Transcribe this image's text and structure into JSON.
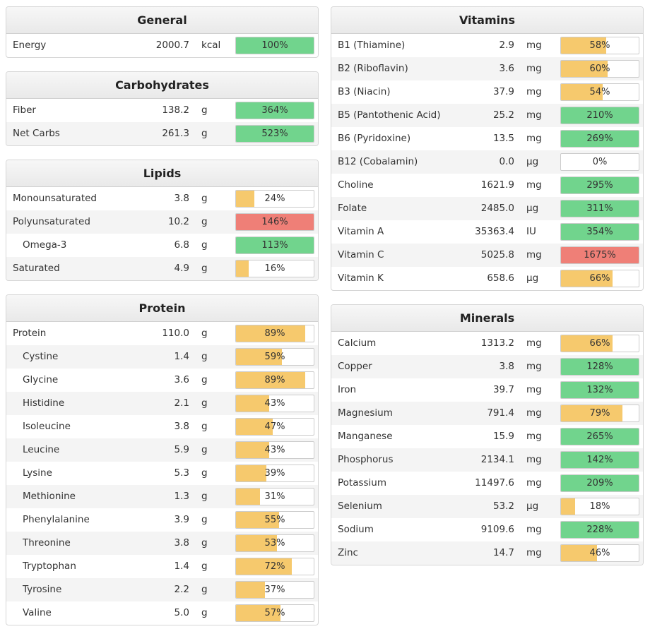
{
  "colors": {
    "low": "#f6c96d",
    "ok": "#71d48d",
    "high": "#ef7f77"
  },
  "left": [
    {
      "title": "General",
      "rows": [
        {
          "name": "Energy",
          "amount": "2000.7",
          "unit": "kcal",
          "pct_label": "100%",
          "percent": 100,
          "status": "green"
        }
      ]
    },
    {
      "title": "Carbohydrates",
      "rows": [
        {
          "name": "Fiber",
          "amount": "138.2",
          "unit": "g",
          "pct_label": "364%",
          "percent": 364,
          "status": "green"
        },
        {
          "name": "Net Carbs",
          "amount": "261.3",
          "unit": "g",
          "pct_label": "523%",
          "percent": 523,
          "status": "green"
        }
      ]
    },
    {
      "title": "Lipids",
      "rows": [
        {
          "name": "Monounsaturated",
          "amount": "3.8",
          "unit": "g",
          "pct_label": "24%",
          "percent": 24,
          "status": "yellow"
        },
        {
          "name": "Polyunsaturated",
          "amount": "10.2",
          "unit": "g",
          "pct_label": "146%",
          "percent": 146,
          "status": "red"
        },
        {
          "name": "Omega-3",
          "amount": "6.8",
          "unit": "g",
          "pct_label": "113%",
          "percent": 113,
          "status": "green",
          "indent": true
        },
        {
          "name": "Saturated",
          "amount": "4.9",
          "unit": "g",
          "pct_label": "16%",
          "percent": 16,
          "status": "yellow"
        }
      ]
    },
    {
      "title": "Protein",
      "rows": [
        {
          "name": "Protein",
          "amount": "110.0",
          "unit": "g",
          "pct_label": "89%",
          "percent": 89,
          "status": "yellow"
        },
        {
          "name": "Cystine",
          "amount": "1.4",
          "unit": "g",
          "pct_label": "59%",
          "percent": 59,
          "status": "yellow",
          "indent": true
        },
        {
          "name": "Glycine",
          "amount": "3.6",
          "unit": "g",
          "pct_label": "89%",
          "percent": 89,
          "status": "yellow",
          "indent": true
        },
        {
          "name": "Histidine",
          "amount": "2.1",
          "unit": "g",
          "pct_label": "43%",
          "percent": 43,
          "status": "yellow",
          "indent": true
        },
        {
          "name": "Isoleucine",
          "amount": "3.8",
          "unit": "g",
          "pct_label": "47%",
          "percent": 47,
          "status": "yellow",
          "indent": true
        },
        {
          "name": "Leucine",
          "amount": "5.9",
          "unit": "g",
          "pct_label": "43%",
          "percent": 43,
          "status": "yellow",
          "indent": true
        },
        {
          "name": "Lysine",
          "amount": "5.3",
          "unit": "g",
          "pct_label": "39%",
          "percent": 39,
          "status": "yellow",
          "indent": true
        },
        {
          "name": "Methionine",
          "amount": "1.3",
          "unit": "g",
          "pct_label": "31%",
          "percent": 31,
          "status": "yellow",
          "indent": true
        },
        {
          "name": "Phenylalanine",
          "amount": "3.9",
          "unit": "g",
          "pct_label": "55%",
          "percent": 55,
          "status": "yellow",
          "indent": true
        },
        {
          "name": "Threonine",
          "amount": "3.8",
          "unit": "g",
          "pct_label": "53%",
          "percent": 53,
          "status": "yellow",
          "indent": true
        },
        {
          "name": "Tryptophan",
          "amount": "1.4",
          "unit": "g",
          "pct_label": "72%",
          "percent": 72,
          "status": "yellow",
          "indent": true
        },
        {
          "name": "Tyrosine",
          "amount": "2.2",
          "unit": "g",
          "pct_label": "37%",
          "percent": 37,
          "status": "yellow",
          "indent": true
        },
        {
          "name": "Valine",
          "amount": "5.0",
          "unit": "g",
          "pct_label": "57%",
          "percent": 57,
          "status": "yellow",
          "indent": true
        }
      ]
    }
  ],
  "right": [
    {
      "title": "Vitamins",
      "rows": [
        {
          "name": "B1 (Thiamine)",
          "amount": "2.9",
          "unit": "mg",
          "pct_label": "58%",
          "percent": 58,
          "status": "yellow"
        },
        {
          "name": "B2 (Riboflavin)",
          "amount": "3.6",
          "unit": "mg",
          "pct_label": "60%",
          "percent": 60,
          "status": "yellow"
        },
        {
          "name": "B3 (Niacin)",
          "amount": "37.9",
          "unit": "mg",
          "pct_label": "54%",
          "percent": 54,
          "status": "yellow"
        },
        {
          "name": "B5 (Pantothenic Acid)",
          "amount": "25.2",
          "unit": "mg",
          "pct_label": "210%",
          "percent": 210,
          "status": "green"
        },
        {
          "name": "B6 (Pyridoxine)",
          "amount": "13.5",
          "unit": "mg",
          "pct_label": "269%",
          "percent": 269,
          "status": "green"
        },
        {
          "name": "B12 (Cobalamin)",
          "amount": "0.0",
          "unit": "µg",
          "pct_label": "0%",
          "percent": 0,
          "status": "yellow"
        },
        {
          "name": "Choline",
          "amount": "1621.9",
          "unit": "mg",
          "pct_label": "295%",
          "percent": 295,
          "status": "green"
        },
        {
          "name": "Folate",
          "amount": "2485.0",
          "unit": "µg",
          "pct_label": "311%",
          "percent": 311,
          "status": "green"
        },
        {
          "name": "Vitamin A",
          "amount": "35363.4",
          "unit": "IU",
          "pct_label": "354%",
          "percent": 354,
          "status": "green"
        },
        {
          "name": "Vitamin C",
          "amount": "5025.8",
          "unit": "mg",
          "pct_label": "1675%",
          "percent": 1675,
          "status": "red"
        },
        {
          "name": "Vitamin K",
          "amount": "658.6",
          "unit": "µg",
          "pct_label": "66%",
          "percent": 66,
          "status": "yellow"
        }
      ]
    },
    {
      "title": "Minerals",
      "rows": [
        {
          "name": "Calcium",
          "amount": "1313.2",
          "unit": "mg",
          "pct_label": "66%",
          "percent": 66,
          "status": "yellow"
        },
        {
          "name": "Copper",
          "amount": "3.8",
          "unit": "mg",
          "pct_label": "128%",
          "percent": 128,
          "status": "green"
        },
        {
          "name": "Iron",
          "amount": "39.7",
          "unit": "mg",
          "pct_label": "132%",
          "percent": 132,
          "status": "green"
        },
        {
          "name": "Magnesium",
          "amount": "791.4",
          "unit": "mg",
          "pct_label": "79%",
          "percent": 79,
          "status": "yellow"
        },
        {
          "name": "Manganese",
          "amount": "15.9",
          "unit": "mg",
          "pct_label": "265%",
          "percent": 265,
          "status": "green"
        },
        {
          "name": "Phosphorus",
          "amount": "2134.1",
          "unit": "mg",
          "pct_label": "142%",
          "percent": 142,
          "status": "green"
        },
        {
          "name": "Potassium",
          "amount": "11497.6",
          "unit": "mg",
          "pct_label": "209%",
          "percent": 209,
          "status": "green"
        },
        {
          "name": "Selenium",
          "amount": "53.2",
          "unit": "µg",
          "pct_label": "18%",
          "percent": 18,
          "status": "yellow"
        },
        {
          "name": "Sodium",
          "amount": "9109.6",
          "unit": "mg",
          "pct_label": "228%",
          "percent": 228,
          "status": "green"
        },
        {
          "name": "Zinc",
          "amount": "14.7",
          "unit": "mg",
          "pct_label": "46%",
          "percent": 46,
          "status": "yellow"
        }
      ]
    }
  ]
}
